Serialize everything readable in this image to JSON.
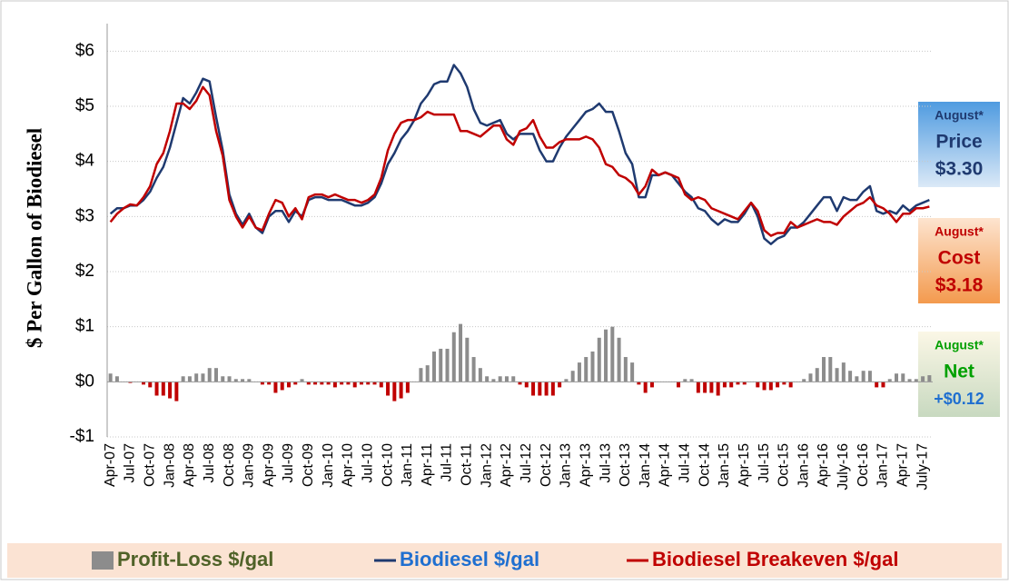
{
  "chart_data": {
    "type": "bar_line",
    "y_label": "$ Per Gallon of Biodiesel",
    "categories": [
      "Apr-07",
      null,
      null,
      "Jul-07",
      null,
      null,
      "Oct-07",
      null,
      null,
      "Jan-08",
      null,
      null,
      "Apr-08",
      null,
      null,
      "Jul-08",
      null,
      null,
      "Oct-08",
      null,
      null,
      "Jan-09",
      null,
      null,
      "Apr-09",
      null,
      null,
      "Jul-09",
      null,
      null,
      "Oct-09",
      null,
      null,
      "Jan-10",
      null,
      null,
      "Apr-10",
      null,
      null,
      "Jul-10",
      null,
      null,
      "Oct-10",
      null,
      null,
      "Jan-11",
      null,
      null,
      "Apr-11",
      null,
      null,
      "Jul-11",
      null,
      null,
      "Oct-11",
      null,
      null,
      "Jan-12",
      null,
      null,
      "Apr-12",
      null,
      null,
      "Jul-12",
      null,
      null,
      "Oct-12",
      null,
      null,
      "Jan-13",
      null,
      null,
      "Apr-13",
      null,
      null,
      "Jul-13",
      null,
      null,
      "Oct-13",
      null,
      null,
      "Jan-14",
      null,
      null,
      "Apr-14",
      null,
      null,
      "Jul-14",
      null,
      null,
      "Oct-14",
      null,
      null,
      "Jan-15",
      null,
      null,
      "Apr-15",
      null,
      null,
      "Jul-15",
      null,
      null,
      "Oct-15",
      null,
      null,
      "Jan-16",
      null,
      null,
      "Apr-16",
      null,
      null,
      "July-16",
      null,
      null,
      "Oct-16",
      null,
      null,
      "Jan-17",
      null,
      null,
      "Apr-17",
      null,
      null,
      "July-17",
      null
    ],
    "series": [
      {
        "name": "Profit-Loss $/gal",
        "kind": "bar",
        "color": "#8c8c8c",
        "negative_color": "#c00000",
        "values": [
          0.15,
          0.1,
          0,
          -0.02,
          0,
          -0.05,
          -0.1,
          -0.25,
          -0.25,
          -0.3,
          -0.35,
          0.1,
          0.1,
          0.15,
          0.15,
          0.25,
          0.25,
          0.1,
          0.1,
          0.05,
          0.05,
          0.05,
          0,
          -0.05,
          -0.05,
          -0.2,
          -0.15,
          -0.1,
          -0.05,
          0.05,
          -0.05,
          -0.05,
          -0.05,
          -0.05,
          -0.1,
          -0.05,
          -0.05,
          -0.1,
          -0.05,
          -0.05,
          -0.05,
          -0.1,
          -0.25,
          -0.35,
          -0.3,
          -0.2,
          0,
          0.25,
          0.3,
          0.55,
          0.6,
          0.6,
          0.9,
          1.05,
          0.8,
          0.45,
          0.25,
          0.1,
          0.05,
          0.1,
          0.1,
          0.1,
          -0.05,
          -0.1,
          -0.25,
          -0.25,
          -0.25,
          -0.25,
          -0.1,
          0.05,
          0.2,
          0.35,
          0.45,
          0.55,
          0.8,
          0.95,
          1.0,
          0.8,
          0.45,
          0.35,
          -0.05,
          -0.2,
          -0.1,
          0,
          0,
          0,
          -0.1,
          0.05,
          0.05,
          -0.2,
          -0.2,
          -0.2,
          -0.25,
          -0.1,
          -0.1,
          -0.05,
          -0.05,
          0,
          -0.1,
          -0.15,
          -0.15,
          -0.1,
          -0.05,
          -0.1,
          0,
          0.05,
          0.15,
          0.25,
          0.45,
          0.45,
          0.25,
          0.35,
          0.2,
          0.1,
          0.2,
          0.2,
          -0.1,
          -0.1,
          0.05,
          0.15,
          0.15,
          0.05,
          0.05,
          0.1,
          0.12
        ]
      },
      {
        "name": "Biodiesel $/gal",
        "kind": "line",
        "color": "#1f3a70",
        "values": [
          3.05,
          3.15,
          3.15,
          3.2,
          3.2,
          3.3,
          3.45,
          3.7,
          3.9,
          4.25,
          4.7,
          5.15,
          5.05,
          5.25,
          5.5,
          5.45,
          4.8,
          4.2,
          3.4,
          3.05,
          2.85,
          3.05,
          2.8,
          2.7,
          3.0,
          3.1,
          3.1,
          2.9,
          3.1,
          3.0,
          3.3,
          3.35,
          3.35,
          3.3,
          3.3,
          3.3,
          3.25,
          3.2,
          3.2,
          3.25,
          3.35,
          3.6,
          3.95,
          4.15,
          4.4,
          4.55,
          4.75,
          5.05,
          5.2,
          5.4,
          5.45,
          5.45,
          5.75,
          5.6,
          5.35,
          4.95,
          4.7,
          4.65,
          4.7,
          4.75,
          4.5,
          4.4,
          4.5,
          4.5,
          4.5,
          4.2,
          4.0,
          4.0,
          4.25,
          4.45,
          4.6,
          4.75,
          4.9,
          4.95,
          5.05,
          4.9,
          4.9,
          4.55,
          4.15,
          3.95,
          3.35,
          3.35,
          3.75,
          3.75,
          3.8,
          3.75,
          3.6,
          3.45,
          3.35,
          3.15,
          3.1,
          2.95,
          2.85,
          2.95,
          2.9,
          2.9,
          3.05,
          3.25,
          3.0,
          2.6,
          2.5,
          2.6,
          2.65,
          2.8,
          2.8,
          2.9,
          3.05,
          3.2,
          3.35,
          3.35,
          3.1,
          3.35,
          3.3,
          3.3,
          3.45,
          3.55,
          3.1,
          3.05,
          3.1,
          3.05,
          3.2,
          3.1,
          3.2,
          3.25,
          3.3
        ]
      },
      {
        "name": "Biodiesel Breakeven $/gal",
        "kind": "line",
        "color": "#c00000",
        "values": [
          2.9,
          3.05,
          3.15,
          3.22,
          3.2,
          3.35,
          3.55,
          3.95,
          4.15,
          4.55,
          5.05,
          5.05,
          4.95,
          5.1,
          5.35,
          5.2,
          4.55,
          4.1,
          3.3,
          3.0,
          2.8,
          3.0,
          2.8,
          2.75,
          3.05,
          3.3,
          3.25,
          3.0,
          3.15,
          2.95,
          3.35,
          3.4,
          3.4,
          3.35,
          3.4,
          3.35,
          3.3,
          3.3,
          3.25,
          3.3,
          3.4,
          3.7,
          4.2,
          4.5,
          4.7,
          4.75,
          4.75,
          4.8,
          4.9,
          4.85,
          4.85,
          4.85,
          4.85,
          4.55,
          4.55,
          4.5,
          4.45,
          4.55,
          4.65,
          4.65,
          4.4,
          4.3,
          4.55,
          4.6,
          4.75,
          4.45,
          4.25,
          4.25,
          4.35,
          4.4,
          4.4,
          4.4,
          4.45,
          4.4,
          4.25,
          3.95,
          3.9,
          3.75,
          3.7,
          3.6,
          3.4,
          3.55,
          3.85,
          3.75,
          3.8,
          3.75,
          3.7,
          3.4,
          3.3,
          3.35,
          3.3,
          3.15,
          3.1,
          3.05,
          3.0,
          2.95,
          3.1,
          3.25,
          3.1,
          2.75,
          2.65,
          2.7,
          2.7,
          2.9,
          2.8,
          2.85,
          2.9,
          2.95,
          2.9,
          2.9,
          2.85,
          3.0,
          3.1,
          3.2,
          3.25,
          3.35,
          3.2,
          3.15,
          3.05,
          2.9,
          3.05,
          3.05,
          3.15,
          3.15,
          3.18
        ]
      }
    ],
    "ylim": [
      -1,
      6.5
    ],
    "yticks": [
      {
        "value": -1,
        "label": "-$1"
      },
      {
        "value": 0,
        "label": "$0"
      },
      {
        "value": 1,
        "label": "$1"
      },
      {
        "value": 2,
        "label": "$2"
      },
      {
        "value": 3,
        "label": "$3"
      },
      {
        "value": 4,
        "label": "$4"
      },
      {
        "value": 5,
        "label": "$5"
      },
      {
        "value": 6,
        "label": "$6"
      }
    ],
    "grid": true,
    "legend": "bottom",
    "annotations": [
      {
        "heading": "August*",
        "label": "Price",
        "value_label": "$3.30"
      },
      {
        "heading": "August*",
        "label": "Cost",
        "value_label": "$3.18"
      },
      {
        "heading": "August*",
        "label": "Net",
        "value_label": "+$0.12"
      }
    ]
  }
}
